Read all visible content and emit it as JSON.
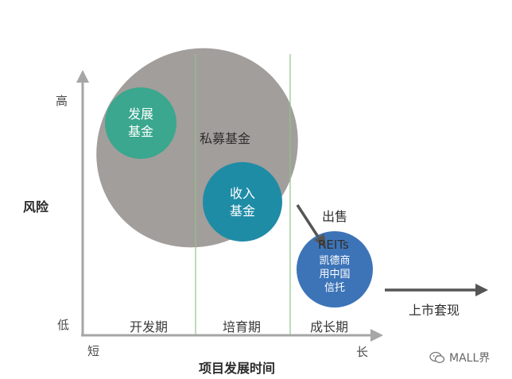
{
  "axes": {
    "y_title": "风险",
    "y_high": "高",
    "y_low": "低",
    "x_title": "项目发展时间",
    "x_short": "短",
    "x_long": "长"
  },
  "phases": [
    "开发期",
    "培育期",
    "成长期"
  ],
  "private_fund": {
    "label": "私募基金",
    "color": "#a29e9b"
  },
  "dev_fund": {
    "line1": "发展",
    "line2": "基金",
    "color": "#3aa78e"
  },
  "income_fund": {
    "line1": "收入",
    "line2": "基金",
    "color": "#1f8ca6"
  },
  "reits": {
    "title": "REITs",
    "line1": "凯德商",
    "line2": "用中国",
    "line3": "信托",
    "color": "#3d74b8"
  },
  "sell_label": "出售",
  "listing_label": "上市套现",
  "watermark": {
    "text": "MALL界",
    "icon": "wechat-icon"
  },
  "colors": {
    "axis": "#a6a6a6",
    "divider": "#90c48a",
    "arrow": "#555555"
  }
}
